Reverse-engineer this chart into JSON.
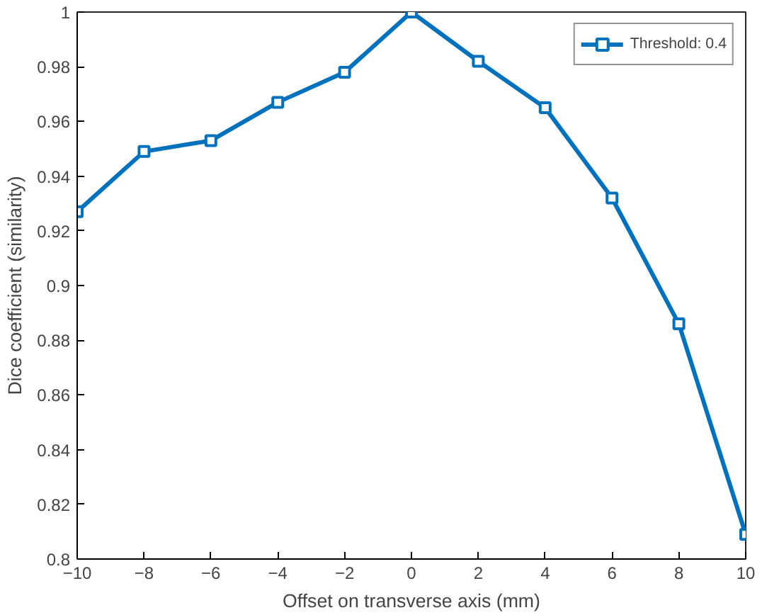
{
  "chart_data": {
    "type": "line",
    "xlabel": "Offset on transverse axis (mm)",
    "ylabel": "Dice coefficient (similarity)",
    "x": [
      -10,
      -8,
      -6,
      -4,
      -2,
      0,
      2,
      4,
      6,
      8,
      10
    ],
    "series": [
      {
        "name": "Threshold: 0.4",
        "color": "#0072bd",
        "values": [
          0.927,
          0.949,
          0.953,
          0.967,
          0.978,
          1.0,
          0.982,
          0.965,
          0.932,
          0.886,
          0.809
        ]
      }
    ],
    "xlim": [
      -10,
      10
    ],
    "xticks": [
      -10,
      -8,
      -6,
      -4,
      -2,
      0,
      2,
      4,
      6,
      8,
      10
    ],
    "ylim": [
      0.8,
      1
    ],
    "yticks": [
      0.8,
      0.82,
      0.84,
      0.86,
      0.88,
      0.9,
      0.92,
      0.94,
      0.96,
      0.98,
      1
    ],
    "grid": false,
    "legend": "top right",
    "marker": "square",
    "line_style": "solid"
  }
}
